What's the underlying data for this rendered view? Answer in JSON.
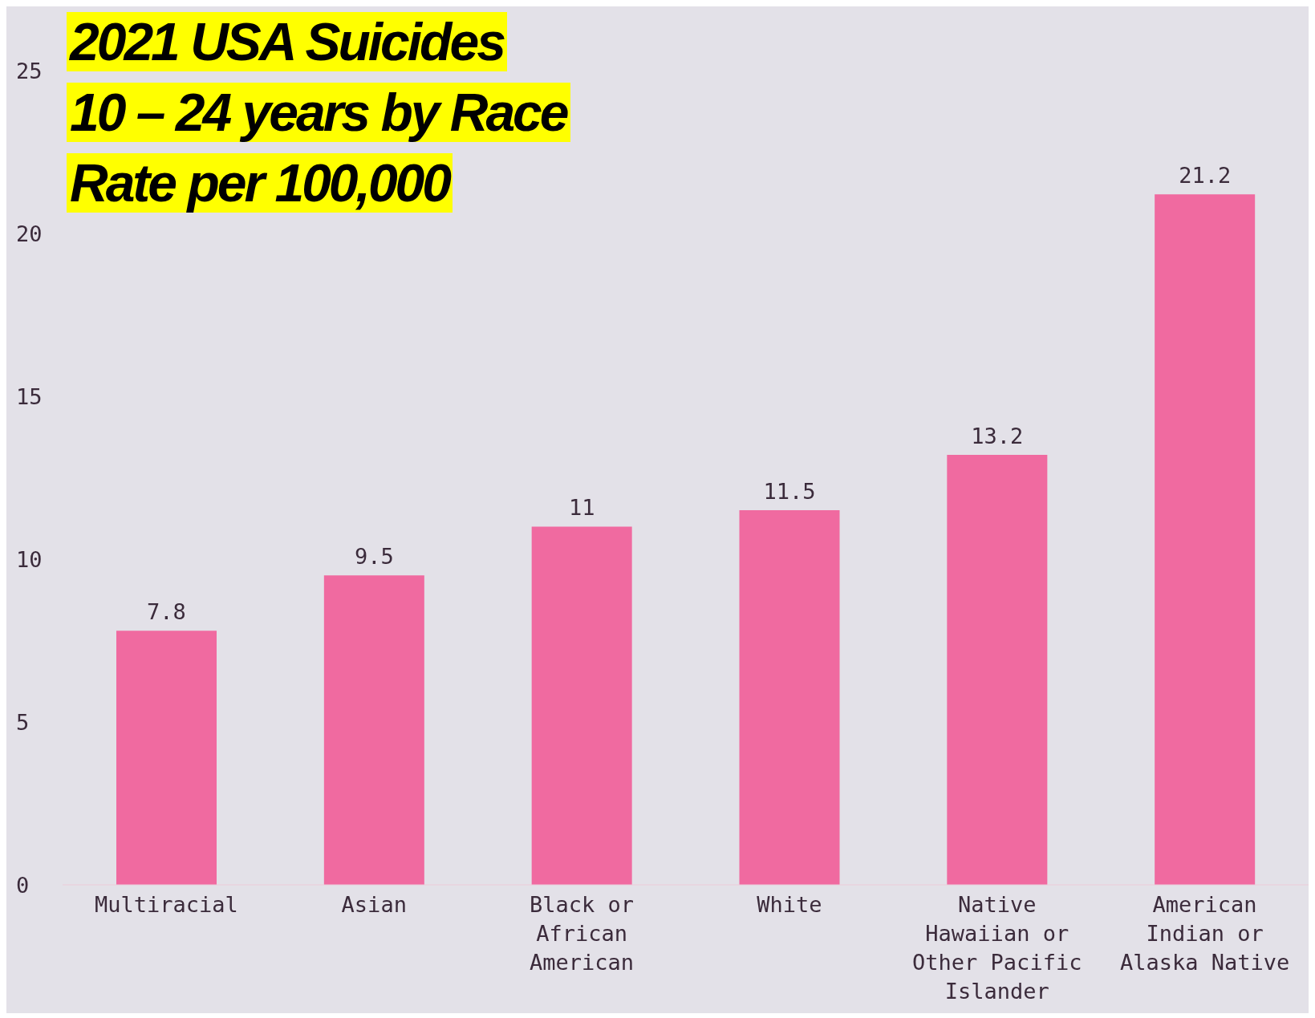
{
  "chart_data": {
    "type": "bar",
    "title": "2021 USA Suicides\n10 – 24 years by Race\nRate per 100,000",
    "categories": [
      "Multiracial",
      "Asian",
      "Black or African American",
      "White",
      "Native Hawaiian or Other Pacific Islander",
      "American Indian or Alaska Native"
    ],
    "values": [
      7.8,
      9.5,
      11,
      11.5,
      13.2,
      21.2
    ],
    "color": "#f06aa0",
    "ylim": [
      0,
      25
    ],
    "yticks": [
      0,
      5,
      10,
      15,
      20,
      25
    ],
    "grid": false,
    "data_labels": true
  }
}
